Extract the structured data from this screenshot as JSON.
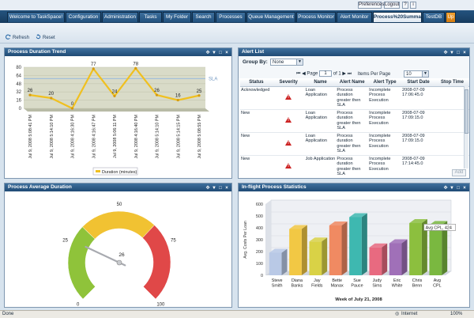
{
  "util_buttons": {
    "preferences": "Preferences",
    "logout": "Logout",
    "help": "?",
    "info": "i"
  },
  "tabs": [
    {
      "label": "Welcome to TaskSpace!"
    },
    {
      "label": "Configuration"
    },
    {
      "label": "Administration"
    },
    {
      "label": "Tasks"
    },
    {
      "label": "My Folder"
    },
    {
      "label": "Search"
    },
    {
      "label": "Processes"
    },
    {
      "label": "Queue Management"
    },
    {
      "label": "Process Monitor"
    },
    {
      "label": "Alert Monitor"
    },
    {
      "label": "Process%20Summary"
    },
    {
      "label": "TestDB"
    },
    {
      "label": "Up"
    }
  ],
  "toolbar": {
    "refresh": "Refresh",
    "reset": "Reset"
  },
  "panels": {
    "trend": {
      "title": "Process Duration Trend"
    },
    "alerts": {
      "title": "Alert List"
    },
    "average": {
      "title": "Process Average Duration"
    },
    "inflight": {
      "title": "In-flight Process Statistics"
    }
  },
  "alerts": {
    "group_by_label": "Group By:",
    "group_by_value": "None",
    "page_label": "Page",
    "page_value": "1",
    "page_of": "of 1",
    "items_per_page_label": "Items Per Page",
    "items_per_page_value": "10",
    "add_button": "Add",
    "columns": [
      "Status",
      "Severity",
      "Name",
      "Alert Name",
      "Alert Type",
      "Start Date",
      "Stop Time"
    ],
    "rows": [
      {
        "status": "Acknowledged",
        "name": "Loan Application",
        "alert_name": "Process duration greater then SLA",
        "alert_type": "Incomplete Process Execution",
        "start_date": "2008-07-09 17:06:45.0",
        "stop_time": ""
      },
      {
        "status": "New",
        "name": "Loan Application",
        "alert_name": "Process duration greater then SLA",
        "alert_type": "Incomplete Process Execution",
        "start_date": "2008-07-09 17:09:15.0",
        "stop_time": ""
      },
      {
        "status": "New",
        "name": "Loan Application",
        "alert_name": "Process duration greater then SLA",
        "alert_type": "Incomplete Process Execution",
        "start_date": "2008-07-09 17:09:15.0",
        "stop_time": ""
      },
      {
        "status": "New",
        "name": "Job Application",
        "alert_name": "Process duration greater then SLA",
        "alert_type": "Incomplete Process Execution",
        "start_date": "2008-07-09 17:14:45.0",
        "stop_time": ""
      }
    ]
  },
  "chart_data": [
    {
      "type": "line",
      "categories": [
        "Jul 9, 2008 5:08:41 PM",
        "Jul 9, 2008 5:14:10 PM",
        "Jul 9, 2008 4:16:30 PM",
        "Jul 9, 2008 4:16:47 PM",
        "Jul 9, 2008 5:06:11 PM",
        "Jul 9, 2008 4:16:40 PM",
        "Jul 9, 2008 5:14:10 PM",
        "Jul 9, 2008 5:14:15 PM",
        "Jul 9, 2008 5:08:55 PM"
      ],
      "series": [
        {
          "name": "Duration (minutes)",
          "values": [
            26,
            20,
            0,
            77,
            24,
            78,
            26,
            16,
            25
          ]
        }
      ],
      "y_ticks": [
        0,
        16,
        32,
        48,
        64,
        80
      ],
      "ylim": [
        0,
        80
      ],
      "reference_line": {
        "label": "SLA",
        "value": 58
      },
      "color": "#f0c020"
    },
    {
      "type": "gauge",
      "value": 26,
      "range": [
        0,
        100
      ],
      "tick_labels": [
        "0",
        "25",
        "50",
        "75",
        "100"
      ],
      "bands": [
        {
          "from": 0,
          "to": 33,
          "color": "#8fc33a"
        },
        {
          "from": 33,
          "to": 66,
          "color": "#f1c232"
        },
        {
          "from": 66,
          "to": 100,
          "color": "#e04848"
        }
      ]
    },
    {
      "type": "bar",
      "categories": [
        "Steve Smith",
        "Diana Banks",
        "Jay Fields",
        "Bette Manax",
        "Sue Pauce",
        "Judy Sims",
        "Eric White",
        "Chris Benn",
        "Avg CPL"
      ],
      "values": [
        190,
        390,
        285,
        420,
        490,
        235,
        270,
        440,
        424
      ],
      "colors": [
        "#b9c9e6",
        "#f2c844",
        "#d9d246",
        "#f08a62",
        "#3eb8b0",
        "#e86a80",
        "#a070b8",
        "#8cbf3e",
        "#7ab840"
      ],
      "y_ticks": [
        0,
        100,
        200,
        300,
        400,
        500,
        600
      ],
      "ylim": [
        0,
        600
      ],
      "ylabel": "Avg. Costs Per Loan",
      "xlabel": "Week of July 21, 2008",
      "annotation": "Avg CPL, 424"
    }
  ],
  "status_bar": {
    "left": "Done",
    "zone": "Internet",
    "zoom": "100%"
  }
}
